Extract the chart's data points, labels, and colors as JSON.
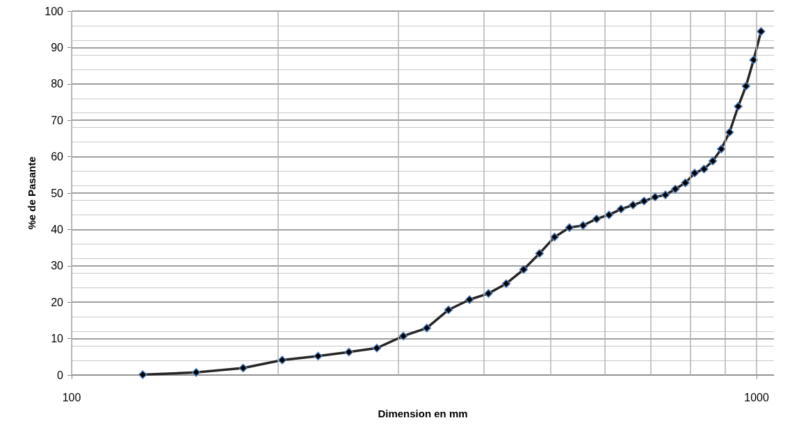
{
  "chart_data": {
    "type": "line",
    "xlabel": "Dimension en mm",
    "ylabel": "%e de Pasante",
    "log": "x",
    "grid": true,
    "marker": "diamond",
    "line_style": "solid",
    "xlim": [
      100,
      1060
    ],
    "xticks": [
      100,
      {
        "value": 200,
        "label": null
      },
      {
        "value": 300,
        "label": null
      },
      {
        "value": 400,
        "label": null
      },
      {
        "value": 500,
        "label": null
      },
      {
        "value": 600,
        "label": null
      },
      {
        "value": 700,
        "label": null
      },
      {
        "value": 800,
        "label": null
      },
      {
        "value": 900,
        "label": null
      },
      1000
    ],
    "ylim": [
      0,
      100
    ],
    "yticks": [
      0,
      10,
      20,
      30,
      40,
      50,
      60,
      70,
      80,
      90,
      100
    ],
    "series": [
      {
        "color": "#262626",
        "x": [
          127,
          152,
          178,
          203,
          229,
          254,
          279,
          305,
          330,
          355,
          381,
          406,
          431,
          457,
          482,
          507,
          533,
          558,
          584,
          609,
          634,
          660,
          685,
          711,
          736,
          761,
          787,
          812,
          838,
          863,
          888,
          913,
          940,
          965,
          990,
          1015
        ],
        "values": [
          0.1,
          0.7,
          1.9,
          4.1,
          5.2,
          6.3,
          7.4,
          10.7,
          12.9,
          17.9,
          20.7,
          22.4,
          25.1,
          29.0,
          33.4,
          37.9,
          40.5,
          41.1,
          42.9,
          44.0,
          45.6,
          46.7,
          47.8,
          48.9,
          49.5,
          51.1,
          52.8,
          55.5,
          56.6,
          58.8,
          62.1,
          66.7,
          73.8,
          79.4,
          86.6,
          94.4
        ]
      }
    ]
  }
}
